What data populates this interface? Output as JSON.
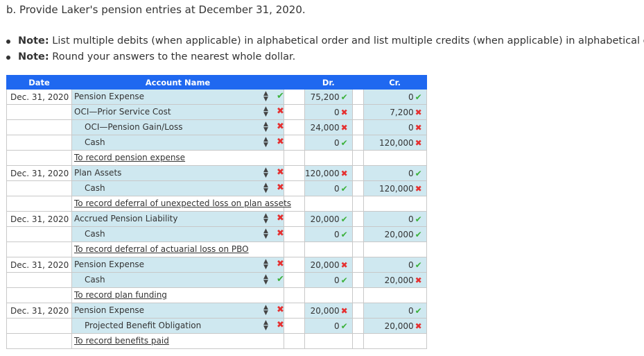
{
  "heading": "b. Provide Laker's pension entries at December 31, 2020.",
  "notes": [
    {
      "label": "Note:",
      "text": " List multiple debits (when applicable) in alphabetical order and list multiple credits (when applicable) in alphabetical order."
    },
    {
      "label": "Note:",
      "text": " Round your answers to the nearest whole dollar."
    }
  ],
  "table": {
    "headers": {
      "date": "Date",
      "account": "Account Name",
      "dr": "Dr.",
      "cr": "Cr."
    },
    "rows": [
      {
        "type": "line",
        "date": "Dec. 31, 2020",
        "account": "Pension Expense",
        "indent": 0,
        "acct_ok": true,
        "dr": "75,200",
        "dr_ok": true,
        "cr": "0",
        "cr_ok": true
      },
      {
        "type": "line",
        "date": "",
        "account": "OCI—Prior Service Cost",
        "indent": 0,
        "acct_ok": false,
        "dr": "0",
        "dr_ok": false,
        "cr": "7,200",
        "cr_ok": false
      },
      {
        "type": "line",
        "date": "",
        "account": "OCI—Pension Gain/Loss",
        "indent": 1,
        "acct_ok": false,
        "dr": "24,000",
        "dr_ok": false,
        "cr": "0",
        "cr_ok": false
      },
      {
        "type": "line",
        "date": "",
        "account": "Cash",
        "indent": 1,
        "acct_ok": false,
        "dr": "0",
        "dr_ok": true,
        "cr": "120,000",
        "cr_ok": false
      },
      {
        "type": "memo",
        "text": "To record pension expense"
      },
      {
        "type": "line",
        "date": "Dec. 31, 2020",
        "account": "Plan Assets",
        "indent": 0,
        "acct_ok": false,
        "dr": "120,000",
        "dr_ok": false,
        "cr": "0",
        "cr_ok": true
      },
      {
        "type": "line",
        "date": "",
        "account": "Cash",
        "indent": 1,
        "acct_ok": false,
        "dr": "0",
        "dr_ok": true,
        "cr": "120,000",
        "cr_ok": false
      },
      {
        "type": "memo",
        "text": "To record deferral of unexpected loss on plan assets"
      },
      {
        "type": "line",
        "date": "Dec. 31, 2020",
        "account": "Accrued Pension Liability",
        "indent": 0,
        "acct_ok": false,
        "dr": "20,000",
        "dr_ok": true,
        "cr": "0",
        "cr_ok": true
      },
      {
        "type": "line",
        "date": "",
        "account": "Cash",
        "indent": 1,
        "acct_ok": false,
        "dr": "0",
        "dr_ok": true,
        "cr": "20,000",
        "cr_ok": true
      },
      {
        "type": "memo",
        "text": "To record deferral of actuarial loss on PBO"
      },
      {
        "type": "line",
        "date": "Dec. 31, 2020",
        "account": "Pension Expense",
        "indent": 0,
        "acct_ok": false,
        "dr": "20,000",
        "dr_ok": false,
        "cr": "0",
        "cr_ok": true
      },
      {
        "type": "line",
        "date": "",
        "account": "Cash",
        "indent": 1,
        "acct_ok": true,
        "dr": "0",
        "dr_ok": true,
        "cr": "20,000",
        "cr_ok": false
      },
      {
        "type": "memo",
        "text": "To record plan funding"
      },
      {
        "type": "line",
        "date": "Dec. 31, 2020",
        "account": "Pension Expense",
        "indent": 0,
        "acct_ok": false,
        "dr": "20,000",
        "dr_ok": false,
        "cr": "0",
        "cr_ok": true
      },
      {
        "type": "line",
        "date": "",
        "account": "Projected Benefit Obligation",
        "indent": 1,
        "acct_ok": false,
        "dr": "0",
        "dr_ok": true,
        "cr": "20,000",
        "cr_ok": false
      },
      {
        "type": "memo",
        "text": "To record benefits paid"
      }
    ]
  },
  "icons": {
    "correct": "check-icon",
    "incorrect": "cross-icon",
    "select": "updown-arrows-icon"
  },
  "colors": {
    "header_bg": "#1f68f0",
    "cell_bg": "#cfe8f0",
    "correct": "#3cb13c",
    "incorrect": "#e53030"
  },
  "glyphs": {
    "check": "✔",
    "cross": "✖",
    "updown": "▲▼"
  }
}
